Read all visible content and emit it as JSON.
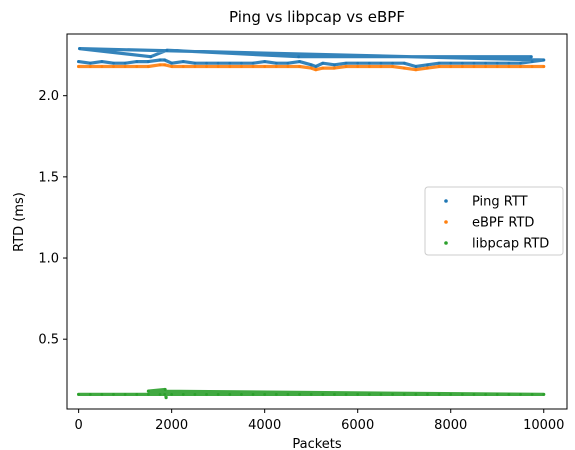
{
  "chart_data": {
    "type": "scatter",
    "title": "Ping vs libpcap vs eBPF",
    "xlabel": "Packets",
    "ylabel": "RTD (ms)",
    "xlim": [
      -250,
      10500
    ],
    "ylim": [
      0.07,
      2.38
    ],
    "grid": false,
    "legend_placement": "center-right",
    "xticks": [
      0,
      2000,
      4000,
      6000,
      8000,
      10000
    ],
    "xtick_labels": [
      "0",
      "2000",
      "4000",
      "6000",
      "8000",
      "10000"
    ],
    "yticks": [
      0.5,
      1.0,
      1.5,
      2.0
    ],
    "ytick_labels": [
      "0.5",
      "1.0",
      "1.5",
      "2.0"
    ],
    "series": [
      {
        "name": "Ping RTT",
        "color": "#1f77b4",
        "x": [
          0,
          250,
          500,
          750,
          1000,
          1250,
          1500,
          1750,
          1850,
          2000,
          2250,
          2500,
          2750,
          3000,
          3250,
          3500,
          3750,
          4000,
          4250,
          4500,
          4750,
          5000,
          5100,
          5250,
          5500,
          5750,
          6000,
          6250,
          6500,
          6750,
          7000,
          7250,
          7500,
          7750,
          8000,
          8250,
          8500,
          8750,
          9000,
          9250,
          9500,
          9750,
          10000,
          20,
          1550,
          1900,
          4730,
          9730
        ],
        "y": [
          2.21,
          2.2,
          2.21,
          2.2,
          2.2,
          2.21,
          2.21,
          2.22,
          2.22,
          2.2,
          2.21,
          2.2,
          2.2,
          2.2,
          2.2,
          2.2,
          2.2,
          2.21,
          2.2,
          2.2,
          2.21,
          2.19,
          2.18,
          2.2,
          2.19,
          2.2,
          2.2,
          2.2,
          2.2,
          2.2,
          2.2,
          2.18,
          2.19,
          2.2,
          2.2,
          2.2,
          2.2,
          2.2,
          2.2,
          2.2,
          2.2,
          2.21,
          2.22,
          2.29,
          2.24,
          2.28,
          2.24,
          2.24
        ]
      },
      {
        "name": "eBPF RTD",
        "color": "#ff7f0e",
        "x": [
          0,
          250,
          500,
          750,
          1000,
          1250,
          1500,
          1750,
          1850,
          2000,
          2250,
          2500,
          2750,
          3000,
          3250,
          3500,
          3750,
          4000,
          4250,
          4500,
          4750,
          5000,
          5100,
          5250,
          5500,
          5750,
          6000,
          6250,
          6500,
          6750,
          7000,
          7250,
          7500,
          7750,
          8000,
          8250,
          8500,
          8750,
          9000,
          9250,
          9500,
          9750,
          10000
        ],
        "y": [
          2.18,
          2.18,
          2.18,
          2.18,
          2.18,
          2.18,
          2.18,
          2.19,
          2.19,
          2.18,
          2.18,
          2.18,
          2.18,
          2.18,
          2.18,
          2.18,
          2.18,
          2.18,
          2.18,
          2.18,
          2.18,
          2.17,
          2.16,
          2.17,
          2.17,
          2.18,
          2.18,
          2.18,
          2.18,
          2.18,
          2.17,
          2.16,
          2.17,
          2.18,
          2.18,
          2.18,
          2.18,
          2.18,
          2.18,
          2.18,
          2.18,
          2.18,
          2.18
        ]
      },
      {
        "name": "libpcap RTD",
        "color": "#2ca02c",
        "x": [
          0,
          250,
          500,
          750,
          1000,
          1250,
          1500,
          1750,
          1850,
          2000,
          2250,
          2500,
          2750,
          3000,
          3250,
          3500,
          3750,
          4000,
          4250,
          4500,
          4750,
          5000,
          5250,
          5500,
          5750,
          6000,
          6250,
          6500,
          6750,
          7000,
          7250,
          7500,
          7750,
          8000,
          8250,
          8500,
          8750,
          9000,
          9250,
          9500,
          9750,
          10000,
          1500,
          1860,
          1880
        ],
        "y": [
          0.16,
          0.16,
          0.16,
          0.16,
          0.16,
          0.16,
          0.16,
          0.16,
          0.16,
          0.16,
          0.16,
          0.16,
          0.16,
          0.16,
          0.16,
          0.16,
          0.16,
          0.16,
          0.16,
          0.16,
          0.16,
          0.16,
          0.16,
          0.16,
          0.16,
          0.16,
          0.16,
          0.16,
          0.16,
          0.16,
          0.16,
          0.16,
          0.16,
          0.16,
          0.16,
          0.16,
          0.16,
          0.16,
          0.16,
          0.16,
          0.16,
          0.16,
          0.18,
          0.19,
          0.14
        ]
      }
    ]
  }
}
